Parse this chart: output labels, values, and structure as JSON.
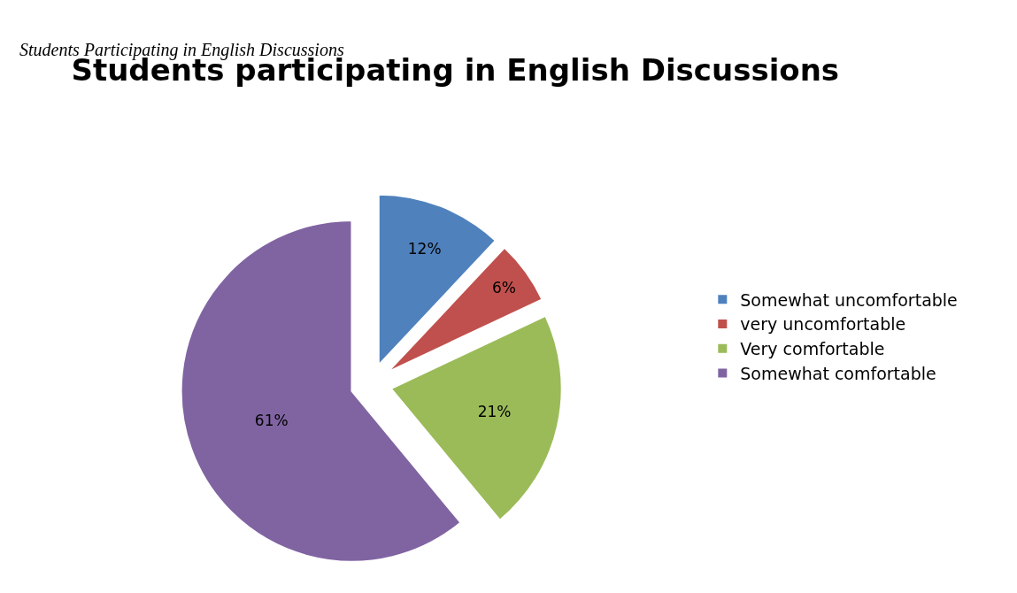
{
  "chart_data": {
    "type": "pie",
    "title": "Students participating in English Discussions",
    "annotations": [
      "Students Participating in English Discussions"
    ],
    "categories": [
      "Somewhat uncomfortable",
      "very uncomfortable",
      "Very comfortable",
      "Somewhat comfortable"
    ],
    "values": [
      12,
      6,
      21,
      61
    ],
    "value_labels": [
      "12%",
      "6%",
      "21%",
      "61%"
    ],
    "colors": [
      "#4f81bd",
      "#c0504d",
      "#9bbb59",
      "#8064a2"
    ],
    "legend": "right"
  }
}
